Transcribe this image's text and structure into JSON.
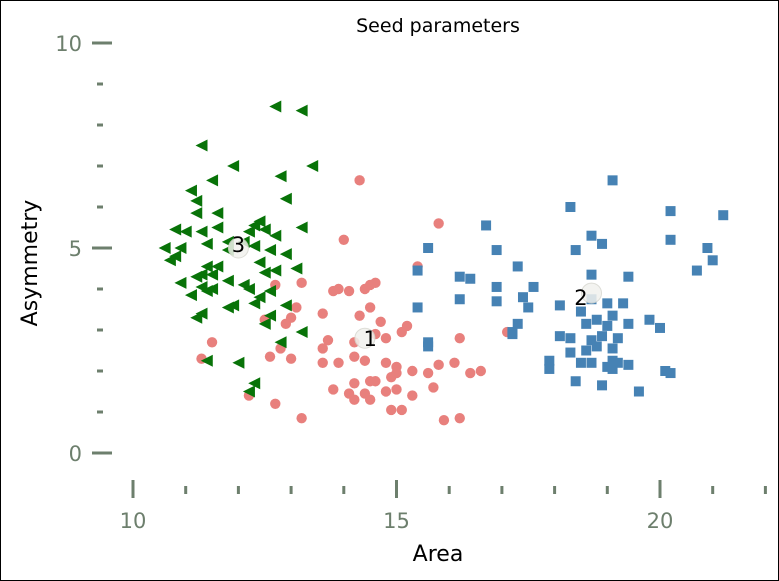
{
  "chart_data": {
    "type": "scatter",
    "title": "Seed parameters",
    "xlabel": "Area",
    "ylabel": "Asymmetry",
    "xlim": [
      9.5,
      22
    ],
    "ylim": [
      -0.8,
      10.2
    ],
    "x_ticks": [
      {
        "value": 10,
        "label": "10"
      },
      {
        "value": 15,
        "label": "15"
      },
      {
        "value": 20,
        "label": "20"
      }
    ],
    "y_ticks": [
      {
        "value": 0,
        "label": "0"
      },
      {
        "value": 5,
        "label": "5"
      },
      {
        "value": 10,
        "label": "10"
      }
    ],
    "x_minor_ticks": [
      11,
      12,
      13,
      14,
      16,
      17,
      18,
      19,
      21,
      22
    ],
    "y_minor_ticks": [
      1,
      2,
      3,
      4,
      6,
      7,
      8,
      9
    ],
    "grid": false,
    "colors": {
      "axis": "#6d7f6d",
      "cluster_1": "#e8807d",
      "cluster_2": "#4682b4",
      "cluster_3": "#087308"
    },
    "series": [
      {
        "marker": "circle",
        "color": "#e8807d",
        "points": [
          [
            14.3,
            6.65
          ],
          [
            15.8,
            5.6
          ],
          [
            14.0,
            5.2
          ],
          [
            15.4,
            4.55
          ],
          [
            12.7,
            4.1
          ],
          [
            13.2,
            4.15
          ],
          [
            14.5,
            4.1
          ],
          [
            14.6,
            4.15
          ],
          [
            14.4,
            4.0
          ],
          [
            13.9,
            4.0
          ],
          [
            13.8,
            3.95
          ],
          [
            14.1,
            3.95
          ],
          [
            14.5,
            3.55
          ],
          [
            13.1,
            3.55
          ],
          [
            14.3,
            3.35
          ],
          [
            12.5,
            3.25
          ],
          [
            12.9,
            3.15
          ],
          [
            13.6,
            3.4
          ],
          [
            13.0,
            3.3
          ],
          [
            14.7,
            3.2
          ],
          [
            15.2,
            3.1
          ],
          [
            15.1,
            2.95
          ],
          [
            14.8,
            2.8
          ],
          [
            14.6,
            2.9
          ],
          [
            14.2,
            2.7
          ],
          [
            13.6,
            2.55
          ],
          [
            12.6,
            2.35
          ],
          [
            12.8,
            2.55
          ],
          [
            13.0,
            2.3
          ],
          [
            13.6,
            2.2
          ],
          [
            13.9,
            2.2
          ],
          [
            14.2,
            2.35
          ],
          [
            14.4,
            2.25
          ],
          [
            14.8,
            2.2
          ],
          [
            15.0,
            2.1
          ],
          [
            15.3,
            2.0
          ],
          [
            15.8,
            2.15
          ],
          [
            16.1,
            2.2
          ],
          [
            16.4,
            1.95
          ],
          [
            16.6,
            2.0
          ],
          [
            15.6,
            1.95
          ],
          [
            14.9,
            1.85
          ],
          [
            14.6,
            1.75
          ],
          [
            14.8,
            1.5
          ],
          [
            15.0,
            1.55
          ],
          [
            14.4,
            1.45
          ],
          [
            14.2,
            1.7
          ],
          [
            13.8,
            1.55
          ],
          [
            14.1,
            1.45
          ],
          [
            14.2,
            1.3
          ],
          [
            14.5,
            1.3
          ],
          [
            15.3,
            1.4
          ],
          [
            15.7,
            1.6
          ],
          [
            15.1,
            1.05
          ],
          [
            14.9,
            1.05
          ],
          [
            15.9,
            0.8
          ],
          [
            16.2,
            0.85
          ],
          [
            13.2,
            0.85
          ],
          [
            12.7,
            1.2
          ],
          [
            12.2,
            1.4
          ],
          [
            11.5,
            2.7
          ],
          [
            11.3,
            2.3
          ],
          [
            13.7,
            2.75
          ],
          [
            17.1,
            2.95
          ],
          [
            16.2,
            2.8
          ],
          [
            15.0,
            1.95
          ],
          [
            14.5,
            1.75
          ]
        ]
      },
      {
        "marker": "square",
        "color": "#4682b4",
        "points": [
          [
            19.1,
            6.65
          ],
          [
            18.3,
            6.0
          ],
          [
            20.2,
            5.9
          ],
          [
            21.2,
            5.8
          ],
          [
            18.7,
            5.3
          ],
          [
            16.7,
            5.55
          ],
          [
            20.2,
            5.2
          ],
          [
            18.9,
            5.1
          ],
          [
            18.4,
            4.95
          ],
          [
            16.9,
            4.95
          ],
          [
            20.9,
            5.0
          ],
          [
            21.0,
            4.7
          ],
          [
            15.6,
            5.0
          ],
          [
            17.3,
            4.55
          ],
          [
            16.2,
            4.3
          ],
          [
            16.4,
            4.25
          ],
          [
            15.4,
            4.45
          ],
          [
            18.7,
            4.35
          ],
          [
            19.4,
            4.3
          ],
          [
            20.7,
            4.45
          ],
          [
            17.6,
            4.05
          ],
          [
            16.9,
            4.05
          ],
          [
            18.1,
            3.6
          ],
          [
            18.7,
            3.75
          ],
          [
            17.4,
            3.8
          ],
          [
            17.5,
            3.55
          ],
          [
            16.2,
            3.75
          ],
          [
            16.9,
            3.7
          ],
          [
            15.4,
            3.55
          ],
          [
            18.5,
            3.45
          ],
          [
            19.0,
            3.65
          ],
          [
            19.3,
            3.65
          ],
          [
            19.1,
            3.35
          ],
          [
            18.8,
            3.25
          ],
          [
            18.6,
            3.15
          ],
          [
            19.8,
            3.25
          ],
          [
            19.0,
            3.1
          ],
          [
            19.4,
            3.15
          ],
          [
            20.0,
            3.05
          ],
          [
            17.3,
            3.15
          ],
          [
            17.2,
            2.9
          ],
          [
            18.3,
            2.8
          ],
          [
            18.7,
            2.75
          ],
          [
            19.2,
            2.8
          ],
          [
            18.9,
            2.85
          ],
          [
            18.1,
            2.85
          ],
          [
            18.8,
            2.6
          ],
          [
            19.1,
            2.55
          ],
          [
            15.6,
            2.7
          ],
          [
            15.6,
            2.6
          ],
          [
            18.3,
            2.45
          ],
          [
            18.6,
            2.5
          ],
          [
            17.9,
            2.25
          ],
          [
            18.5,
            2.2
          ],
          [
            18.7,
            2.2
          ],
          [
            19.2,
            2.2
          ],
          [
            19.0,
            2.1
          ],
          [
            19.1,
            2.05
          ],
          [
            19.4,
            2.15
          ],
          [
            17.9,
            2.05
          ],
          [
            19.1,
            2.25
          ],
          [
            20.1,
            2.0
          ],
          [
            20.2,
            1.95
          ],
          [
            18.4,
            1.75
          ],
          [
            18.9,
            1.65
          ],
          [
            19.6,
            1.5
          ],
          [
            17.2,
            2.95
          ]
        ]
      },
      {
        "marker": "triangle-left",
        "color": "#087308",
        "points": [
          [
            12.7,
            8.45
          ],
          [
            13.2,
            8.35
          ],
          [
            11.3,
            7.5
          ],
          [
            11.9,
            7.0
          ],
          [
            13.4,
            7.0
          ],
          [
            11.5,
            6.65
          ],
          [
            12.8,
            6.75
          ],
          [
            11.1,
            6.4
          ],
          [
            11.2,
            6.15
          ],
          [
            12.9,
            6.2
          ],
          [
            12.4,
            5.65
          ],
          [
            11.2,
            5.85
          ],
          [
            11.6,
            5.85
          ],
          [
            12.3,
            5.55
          ],
          [
            11.6,
            5.5
          ],
          [
            12.5,
            5.45
          ],
          [
            13.2,
            5.5
          ],
          [
            10.8,
            5.45
          ],
          [
            11.0,
            5.4
          ],
          [
            11.3,
            5.4
          ],
          [
            12.2,
            5.4
          ],
          [
            12.7,
            5.3
          ],
          [
            11.4,
            5.1
          ],
          [
            11.8,
            5.15
          ],
          [
            12.1,
            5.15
          ],
          [
            10.6,
            5.0
          ],
          [
            10.9,
            5.0
          ],
          [
            10.8,
            4.8
          ],
          [
            10.7,
            4.7
          ],
          [
            11.8,
            4.95
          ],
          [
            12.6,
            4.95
          ],
          [
            12.3,
            5.05
          ],
          [
            11.4,
            4.55
          ],
          [
            11.6,
            4.55
          ],
          [
            12.5,
            4.4
          ],
          [
            12.7,
            4.45
          ],
          [
            13.1,
            4.5
          ],
          [
            11.2,
            4.3
          ],
          [
            11.3,
            4.35
          ],
          [
            10.9,
            4.15
          ],
          [
            11.8,
            4.2
          ],
          [
            12.1,
            4.1
          ],
          [
            11.3,
            4.05
          ],
          [
            11.5,
            4.0
          ],
          [
            12.2,
            4.0
          ],
          [
            11.1,
            3.85
          ],
          [
            11.4,
            3.95
          ],
          [
            12.4,
            3.8
          ],
          [
            11.9,
            3.6
          ],
          [
            12.3,
            3.65
          ],
          [
            11.8,
            3.55
          ],
          [
            12.9,
            3.6
          ],
          [
            11.3,
            3.4
          ],
          [
            11.2,
            3.3
          ],
          [
            12.6,
            3.35
          ],
          [
            12.5,
            3.15
          ],
          [
            13.2,
            2.95
          ],
          [
            12.8,
            2.7
          ],
          [
            11.4,
            2.25
          ],
          [
            12.0,
            2.2
          ],
          [
            12.2,
            1.5
          ],
          [
            12.3,
            1.7
          ],
          [
            12.4,
            4.65
          ],
          [
            12.9,
            4.85
          ],
          [
            11.5,
            4.35
          ],
          [
            12.6,
            3.95
          ]
        ]
      }
    ],
    "annotations": [
      {
        "text": "1",
        "x": 14.5,
        "y": 2.8
      },
      {
        "text": "2",
        "x": 18.5,
        "y": 3.8
      },
      {
        "text": "3",
        "x": 12.0,
        "y": 5.1
      }
    ],
    "centroids": [
      {
        "x": 14.4,
        "y": 2.8
      },
      {
        "x": 18.7,
        "y": 3.9
      },
      {
        "x": 12.0,
        "y": 5.0
      }
    ]
  }
}
